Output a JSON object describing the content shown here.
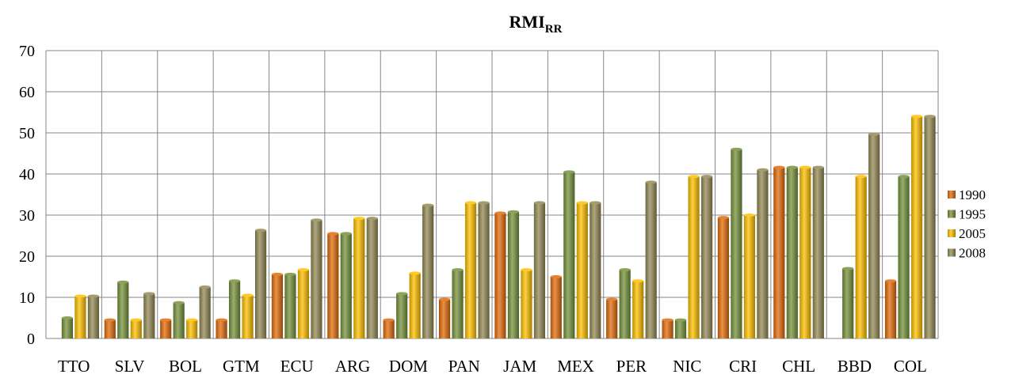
{
  "chart_data": {
    "type": "bar",
    "title_main": "RMI",
    "title_subscript": "RR",
    "categories": [
      "TTO",
      "SLV",
      "BOL",
      "GTM",
      "ECU",
      "ARG",
      "DOM",
      "PAN",
      "JAM",
      "MEX",
      "PER",
      "NIC",
      "CRI",
      "CHL",
      "BBD",
      "COL"
    ],
    "series": [
      {
        "name": "1990",
        "color": "#e36c0a",
        "values": [
          0,
          4.5,
          4.5,
          4.5,
          15.6,
          25.5,
          4.5,
          9.5,
          30.5,
          15,
          9.5,
          4.5,
          29.4,
          41.6,
          0,
          14
        ]
      },
      {
        "name": "1995",
        "color": "#77933c",
        "values": [
          5,
          13.7,
          8.7,
          14,
          15.6,
          25.5,
          10.9,
          16.7,
          30.8,
          40.5,
          16.7,
          4.5,
          46,
          41.6,
          17,
          39.4
        ]
      },
      {
        "name": "2005",
        "color": "#ffc000",
        "values": [
          10.3,
          4.5,
          4.5,
          10.5,
          16.7,
          29.2,
          15.9,
          33,
          16.7,
          33,
          14,
          39.4,
          30,
          41.6,
          39.4,
          54
        ]
      },
      {
        "name": "2008",
        "color": "#948a54",
        "values": [
          10.3,
          10.9,
          12.5,
          26.3,
          28.8,
          29.2,
          32.4,
          33,
          33,
          33,
          38,
          39.4,
          41,
          41.6,
          49.7,
          54
        ]
      }
    ],
    "ylim": [
      0,
      70
    ],
    "yticks": [
      "0",
      "10",
      "20",
      "30",
      "40",
      "50",
      "60",
      "70"
    ],
    "grid": true,
    "legend_position": "right"
  }
}
